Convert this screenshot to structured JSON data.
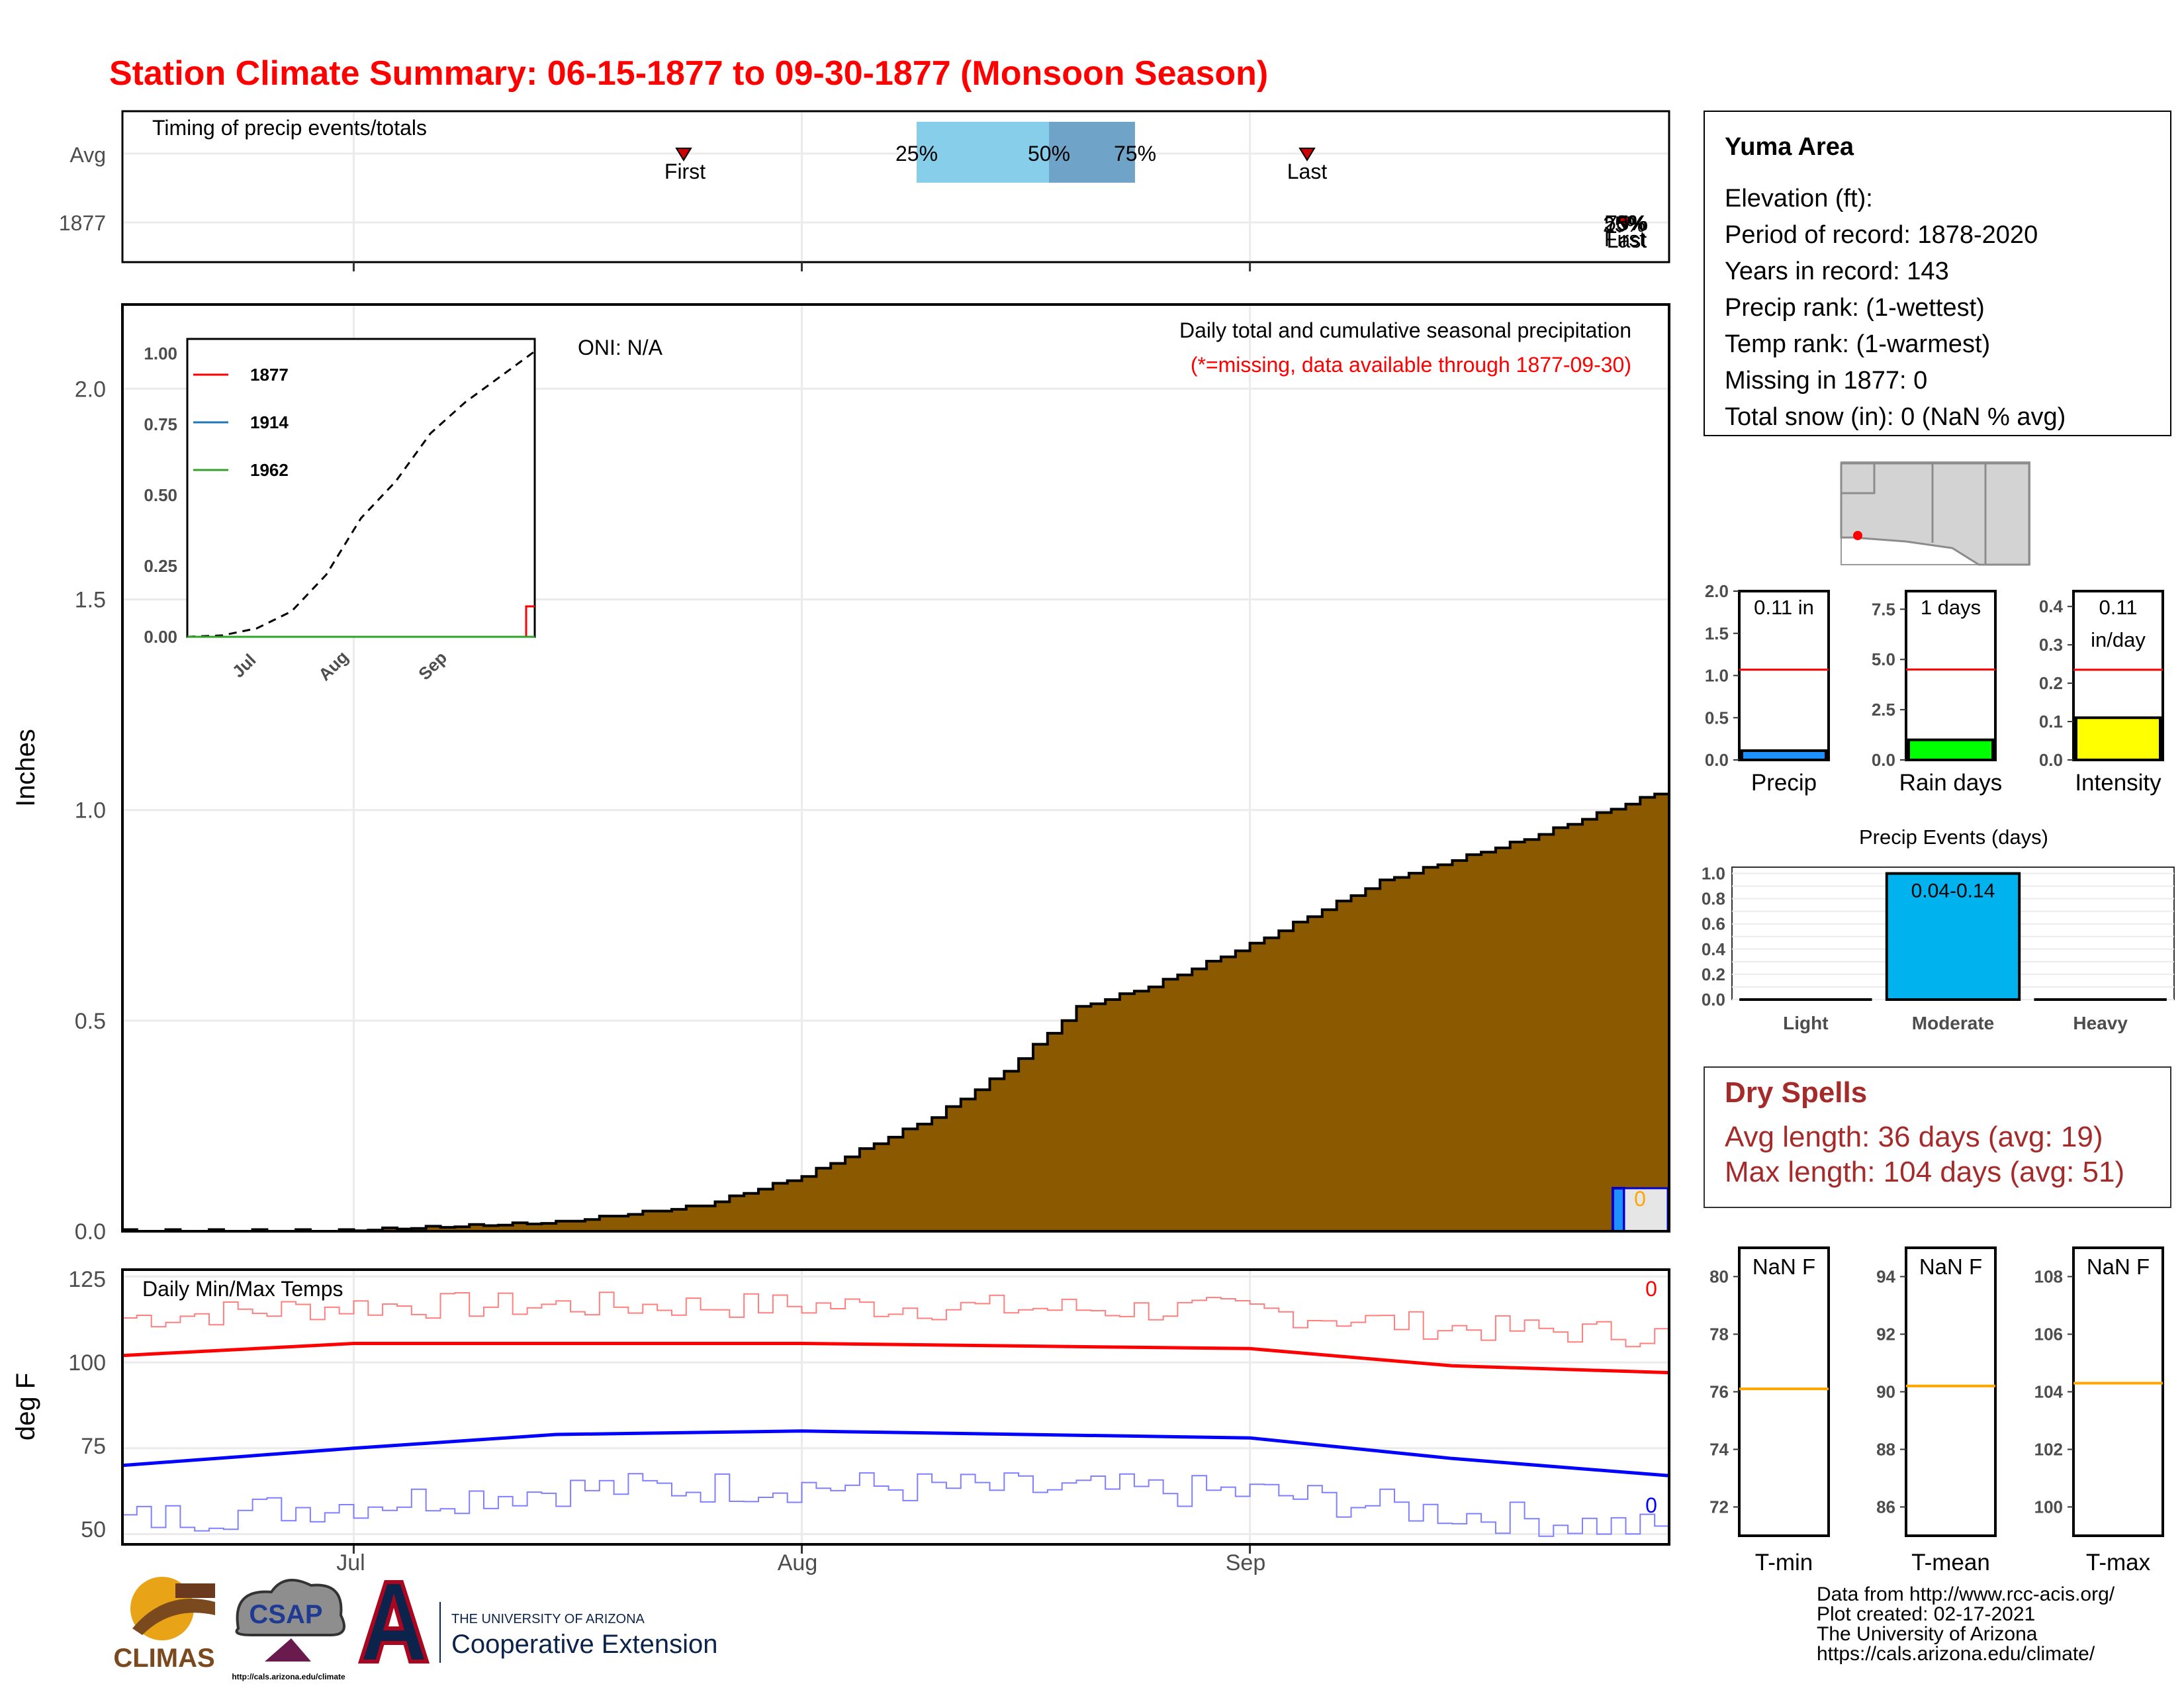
{
  "title": "Station Climate Summary: 06-15-1877 to 09-30-1877 (Monsoon Season)",
  "colors": {
    "title": "#ff0000",
    "cum_fill": "#8b5a00",
    "tmax": "#ff0000",
    "tmin": "#0000ff",
    "quartile_light": "#87ceeb",
    "quartile_dark": "#6fa3c7",
    "precip_bar": "#1e90ff",
    "raindays_bar": "#00ff00",
    "intensity_bar": "#ffff00",
    "events_bar": "#00b2ee",
    "avg_line": "#ff0000",
    "temp_avg_line": "#ffa500",
    "dry_spell_text": "#a52a2a"
  },
  "timing_panel": {
    "title": "Timing of precip events/totals",
    "rows": [
      "Avg",
      "1877"
    ],
    "avg_first_label": "First",
    "avg_last_label": "Last",
    "q25": "25%",
    "q50": "50%",
    "q75": "75%",
    "row1877_top": "75%",
    "row1877_mid": "50%",
    "row1877_mid2": "25%",
    "row1877_first": "First",
    "row1877_last": "Last",
    "avg_first_date": "1877-07-29",
    "avg_last_date": "1877-09-13",
    "q25_date": "1877-08-11",
    "q50_date": "1877-08-20",
    "q75_date": "1877-08-26"
  },
  "main_panel": {
    "ylabel": "Inches",
    "oni": "ONI: N/A",
    "header": "Daily total and cumulative seasonal precipitation",
    "missing_note": "(*=missing, data available through 1877-09-30)",
    "bar_label": "0",
    "inset_legend": [
      "1877",
      "1914",
      "1962"
    ],
    "inset_xticks": [
      "Jul",
      "Aug",
      "Sep"
    ],
    "inset_yticks": [
      "0.00",
      "0.25",
      "0.50",
      "0.75",
      "1.00"
    ]
  },
  "temp_panel": {
    "title": "Daily Min/Max Temps",
    "ylabel": "deg F",
    "missing_max": "0",
    "missing_min": "0",
    "yticks": [
      "50",
      "75",
      "100",
      "125"
    ],
    "xticks": [
      "Jul",
      "Aug",
      "Sep"
    ]
  },
  "info_box": {
    "station": "Yuma Area",
    "lines": [
      "Elevation (ft):",
      "Period of record: 1878-2020",
      "Years in record: 143",
      "Precip rank:  (1-wettest)",
      "Temp rank:  (1-warmest)",
      "Missing in 1877: 0",
      "Total snow (in): 0 (NaN % avg)"
    ]
  },
  "mini_bars": [
    {
      "label": "Precip",
      "value_text": "0.11 in",
      "value": 0.11,
      "avg": 1.07,
      "ymax": 2.0,
      "yticks": [
        "0.0",
        "0.5",
        "1.0",
        "1.5",
        "2.0"
      ]
    },
    {
      "label": "Rain days",
      "value_text": "1 days",
      "value": 1,
      "avg": 4.5,
      "ymax": 8.4,
      "yticks": [
        "0.0",
        "2.5",
        "5.0",
        "7.5"
      ]
    },
    {
      "label": "Intensity",
      "value_text": "0.11",
      "value_text2": "in/day",
      "value": 0.11,
      "avg": 0.235,
      "ymax": 0.44,
      "yticks": [
        "0.0",
        "0.1",
        "0.2",
        "0.3",
        "0.4"
      ]
    }
  ],
  "events": {
    "title": "Precip Events (days)",
    "categories": [
      "Light",
      "Moderate",
      "Heavy"
    ],
    "values": [
      0,
      1,
      0
    ],
    "label": "0.04-0.14",
    "yticks": [
      "0.0",
      "0.2",
      "0.4",
      "0.6",
      "0.8",
      "1.0"
    ]
  },
  "dry_spells": {
    "title": "Dry Spells",
    "avg": "Avg length: 36 days (avg: 19)",
    "max": "Max length: 104 days (avg: 51)"
  },
  "temp_boxes": [
    {
      "label": "T-min",
      "value_text": "NaN F",
      "yticks": [
        "72",
        "74",
        "76",
        "78",
        "80"
      ],
      "avg": 76.1
    },
    {
      "label": "T-mean",
      "value_text": "NaN F",
      "yticks": [
        "86",
        "88",
        "90",
        "92",
        "94"
      ],
      "avg": 90.2
    },
    {
      "label": "T-max",
      "value_text": "NaN F",
      "yticks": [
        "100",
        "102",
        "104",
        "106",
        "108"
      ],
      "avg": 104.3
    }
  ],
  "footer": {
    "lines": [
      "Data from http://www.rcc-acis.org/",
      "Plot created: 02-17-2021",
      "The University of Arizona",
      "https://cals.arizona.edu/climate/"
    ],
    "logo_climas": "CLIMAS",
    "logo_csap": "CSAP",
    "logo_csap_url": "http://cals.arizona.edu/climate",
    "logo_ua_top": "THE UNIVERSITY OF ARIZONA",
    "logo_ua_bottom": "Cooperative Extension"
  },
  "chart_data": [
    {
      "type": "area",
      "title": "Daily total and cumulative seasonal precipitation",
      "ylabel": "Inches",
      "xlim": [
        "1877-06-15",
        "1877-09-30"
      ],
      "ylim": [
        0,
        2.2
      ],
      "x_ticks": [
        "Jul",
        "Aug",
        "Sep"
      ],
      "y_ticks": [
        0.0,
        0.5,
        1.0,
        1.5,
        2.0
      ],
      "series": [
        {
          "name": "",
          "cumulative_by_day": {
            "1877-06-15": 0.0,
            "1877-06-30": 0.0,
            "1877-07-15": 0.02,
            "1877-07-25": 0.06,
            "1877-08-01": 0.13,
            "1877-08-10": 0.27,
            "1877-08-15": 0.38,
            "1877-08-20": 0.53,
            "1877-08-25": 0.58,
            "1877-09-01": 0.68,
            "1877-09-10": 0.83,
            "1877-09-20": 0.93,
            "1877-09-30": 1.05
          }
        }
      ]
    },
    {
      "type": "line",
      "title": "Daily Min/Max Temps",
      "ylabel": "deg F",
      "ylim": [
        47,
        127
      ],
      "y_ticks": [
        50,
        75,
        100,
        125
      ],
      "series": [
        {
          "name": "",
          "points": [
            [
              "1877-06-15",
              102
            ],
            [
              "1877-07-01",
              105.5
            ],
            [
              "1877-08-01",
              105.5
            ],
            [
              "1877-09-01",
              104
            ],
            [
              "1877-09-15",
              99
            ],
            [
              "1877-09-30",
              97
            ]
          ]
        },
        {
          "name": "",
          "points": [
            [
              "1877-06-15",
              70
            ],
            [
              "1877-07-01",
              75
            ],
            [
              "1877-07-15",
              79
            ],
            [
              "1877-08-01",
              80
            ],
            [
              "1877-09-01",
              78
            ],
            [
              "1877-09-15",
              72
            ],
            [
              "1877-09-30",
              67
            ]
          ]
        }
      ]
    }
  ]
}
